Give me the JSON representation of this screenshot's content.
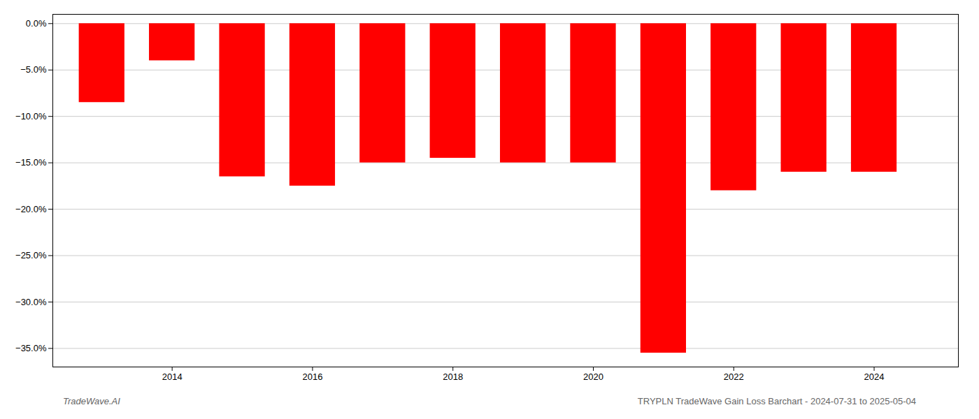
{
  "chart_data": {
    "type": "bar",
    "x": [
      2013,
      2014,
      2015,
      2016,
      2017,
      2018,
      2019,
      2020,
      2021,
      2022,
      2023,
      2024
    ],
    "values": [
      -8.5,
      -4.0,
      -16.5,
      -17.5,
      -15.0,
      -14.5,
      -15.0,
      -15.0,
      -35.5,
      -18.0,
      -16.0,
      -16.0
    ],
    "color": "#ff0000",
    "xlim": [
      2012.3,
      2025.2
    ],
    "xticks": [
      2014,
      2016,
      2018,
      2020,
      2022,
      2024
    ],
    "ylim": [
      -37,
      1.0
    ],
    "yticks": [
      {
        "value": 0.0,
        "label": "0.0%"
      },
      {
        "value": -5.0,
        "label": "−5.0%"
      },
      {
        "value": -10.0,
        "label": "−10.0%"
      },
      {
        "value": -15.0,
        "label": "−15.0%"
      },
      {
        "value": -20.0,
        "label": "−20.0%"
      },
      {
        "value": -25.0,
        "label": "−25.0%"
      },
      {
        "value": -30.0,
        "label": "−30.0%"
      },
      {
        "value": -35.0,
        "label": "−35.0%"
      }
    ],
    "grid": true,
    "annotations": [
      "TradeWave.AI",
      "TRYPLN TradeWave Gain Loss Barchart - 2024-07-31 to 2025-05-04"
    ]
  }
}
